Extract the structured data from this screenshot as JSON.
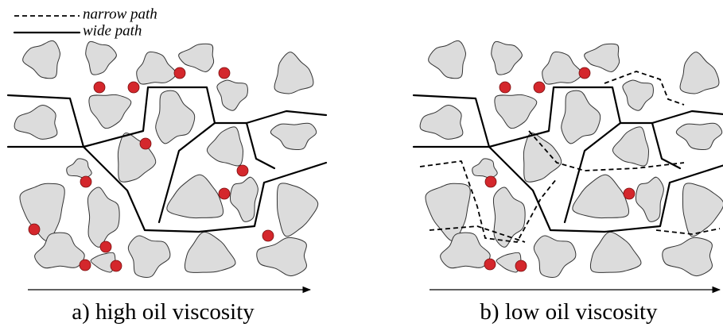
{
  "legend": {
    "items": [
      "narrow path",
      "wide path"
    ]
  },
  "panels": [
    {
      "caption": "a) high oil viscosity"
    },
    {
      "caption": "b) low oil viscosity"
    }
  ]
}
